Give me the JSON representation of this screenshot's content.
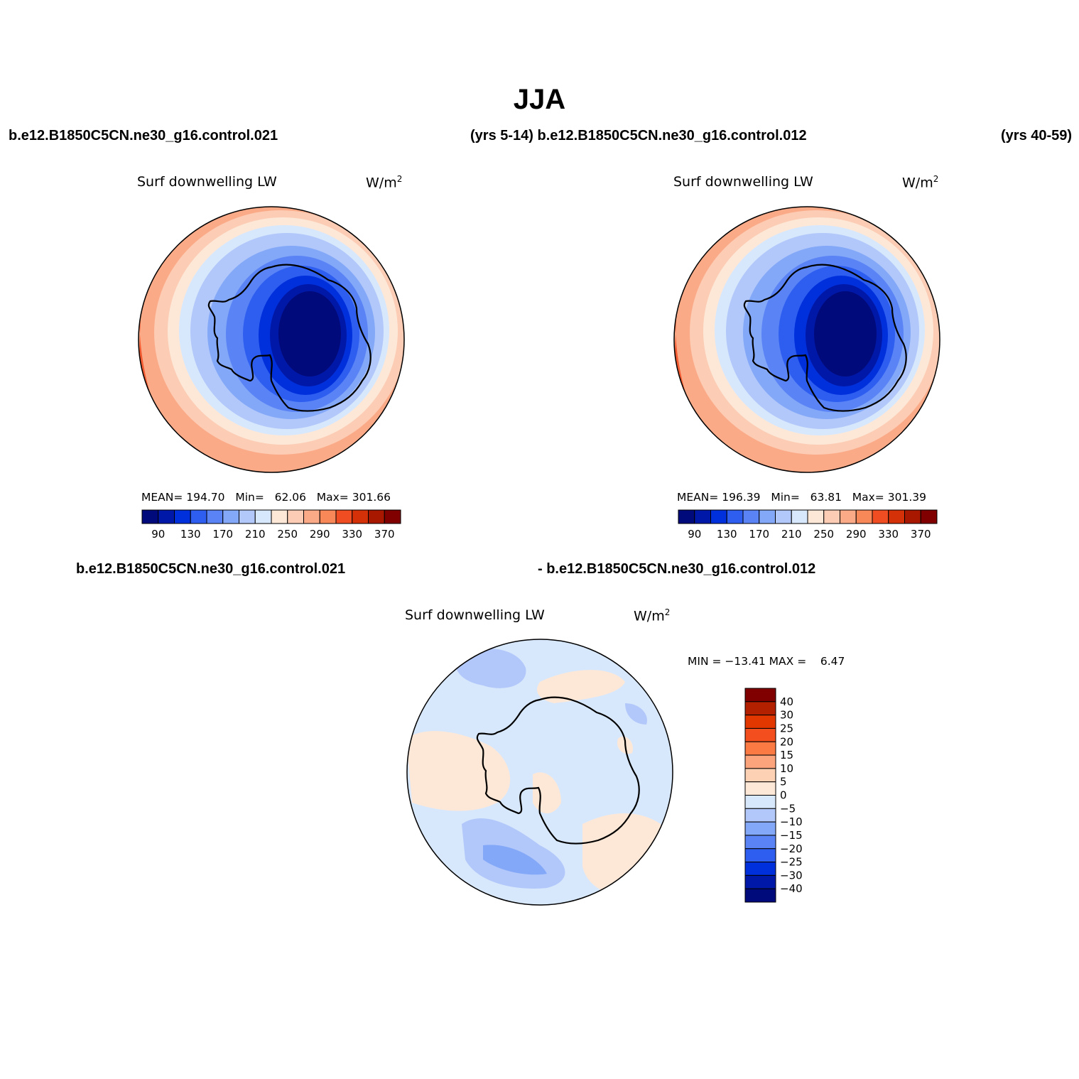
{
  "title": "JJA",
  "header": {
    "left_case": "b.e12.B1850C5CN.ne30_g16.control.021",
    "middle": "(yrs 5-14) b.e12.B1850C5CN.ne30_g16.control.012",
    "right_years": "(yrs 40-59)"
  },
  "diff_header": {
    "left": "b.e12.B1850C5CN.ne30_g16.control.021",
    "right": "- b.e12.B1850C5CN.ne30_g16.control.012"
  },
  "panels": [
    {
      "variable": "Surf downwelling LW",
      "units": "W/m",
      "units_sup": "2",
      "stats": {
        "mean_label": "MEAN=",
        "mean": "194.70",
        "min_label": "Min=",
        "min": "62.06",
        "max_label": "Max=",
        "max": "301.66"
      }
    },
    {
      "variable": "Surf downwelling LW",
      "units": "W/m",
      "units_sup": "2",
      "stats": {
        "mean_label": "MEAN=",
        "mean": "196.39",
        "min_label": "Min=",
        "min": "63.81",
        "max_label": "Max=",
        "max": "301.39"
      }
    }
  ],
  "diff_panel": {
    "variable": "Surf downwelling LW",
    "units": "W/m",
    "units_sup": "2",
    "minmax": "MIN = −13.41 MAX =    6.47"
  },
  "abs_colorbar": {
    "colors": [
      "#000a7a",
      "#0018a8",
      "#0030dc",
      "#2e5ef0",
      "#5a84f6",
      "#84a8f8",
      "#b2c8fa",
      "#d8e8fc",
      "#fde8d8",
      "#fcccb4",
      "#fbaa88",
      "#f88858",
      "#f04e22",
      "#d43108",
      "#a81800",
      "#800000"
    ],
    "labels": [
      "90",
      "130",
      "170",
      "210",
      "250",
      "290",
      "330",
      "370"
    ]
  },
  "diff_colorbar": {
    "colors": [
      "#800000",
      "#b22000",
      "#e33700",
      "#f34e1d",
      "#fb7a44",
      "#fca57c",
      "#fdd1b4",
      "#fde8d8",
      "#d8e8fc",
      "#b2c8fa",
      "#84a8f8",
      "#5a84f6",
      "#2e5ef0",
      "#0030dc",
      "#0018a8",
      "#000a7a"
    ],
    "labels": [
      "40",
      "30",
      "25",
      "20",
      "15",
      "10",
      "5",
      "0",
      "−5",
      "−10",
      "−15",
      "−20",
      "−25",
      "−30",
      "−40"
    ]
  }
}
